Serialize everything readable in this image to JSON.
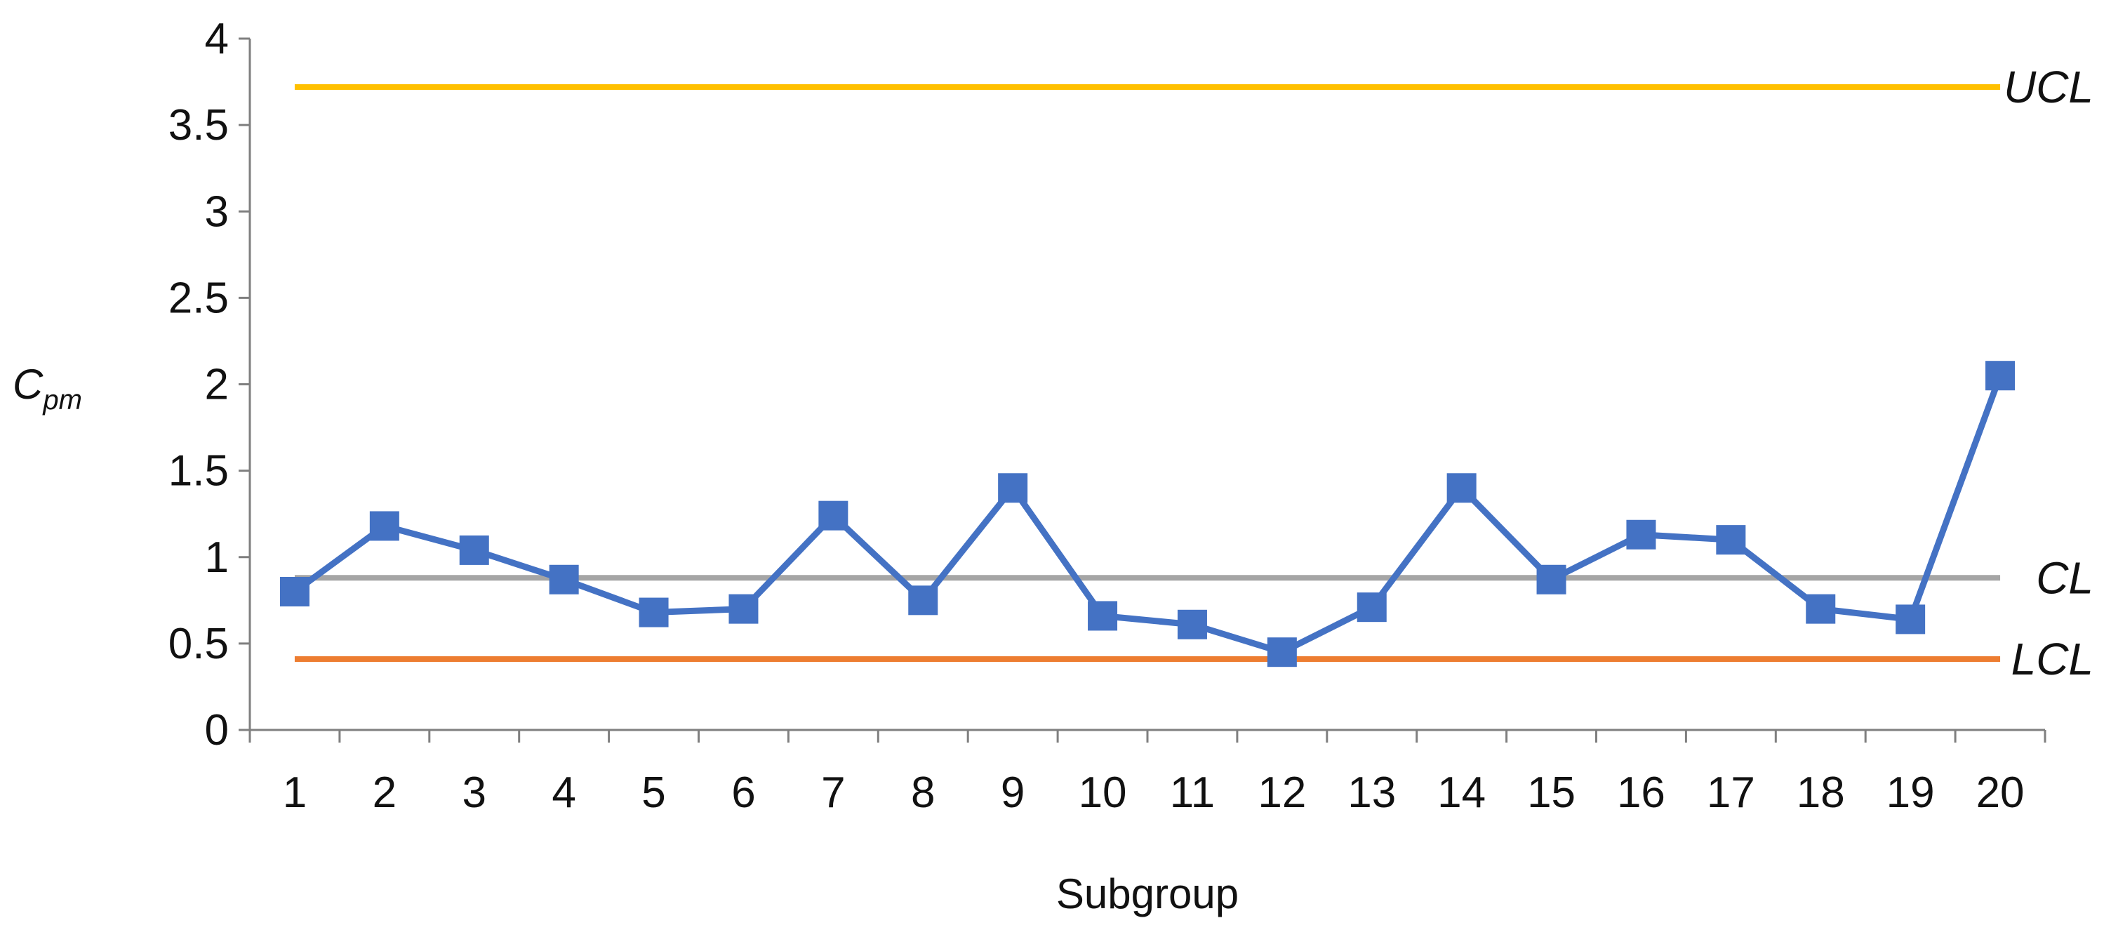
{
  "chart_data": {
    "type": "line",
    "xlabel": "Subgroup",
    "ylabel": {
      "main": "C",
      "sub": "pm"
    },
    "ylim": [
      0,
      4
    ],
    "yticks": [
      "0",
      "0.5",
      "1",
      "1.5",
      "2",
      "2.5",
      "3",
      "3.5",
      "4"
    ],
    "categories": [
      "1",
      "2",
      "3",
      "4",
      "5",
      "6",
      "7",
      "8",
      "9",
      "10",
      "11",
      "12",
      "13",
      "14",
      "15",
      "16",
      "17",
      "18",
      "19",
      "20"
    ],
    "series": [
      {
        "values": [
          0.8,
          1.18,
          1.04,
          0.87,
          0.68,
          0.7,
          1.24,
          0.75,
          1.4,
          0.66,
          0.61,
          0.45,
          0.71,
          1.4,
          0.87,
          1.13,
          1.1,
          0.7,
          0.64,
          2.05
        ],
        "color": "#4472C4",
        "marker": "square"
      }
    ],
    "reference_lines": [
      {
        "label": "UCL",
        "value": 3.72,
        "color": "#FFC000"
      },
      {
        "label": "CL",
        "value": 0.88,
        "color": "#A5A5A5"
      },
      {
        "label": "LCL",
        "value": 0.41,
        "color": "#ED7D31"
      }
    ],
    "grid": false,
    "legend": "none"
  }
}
